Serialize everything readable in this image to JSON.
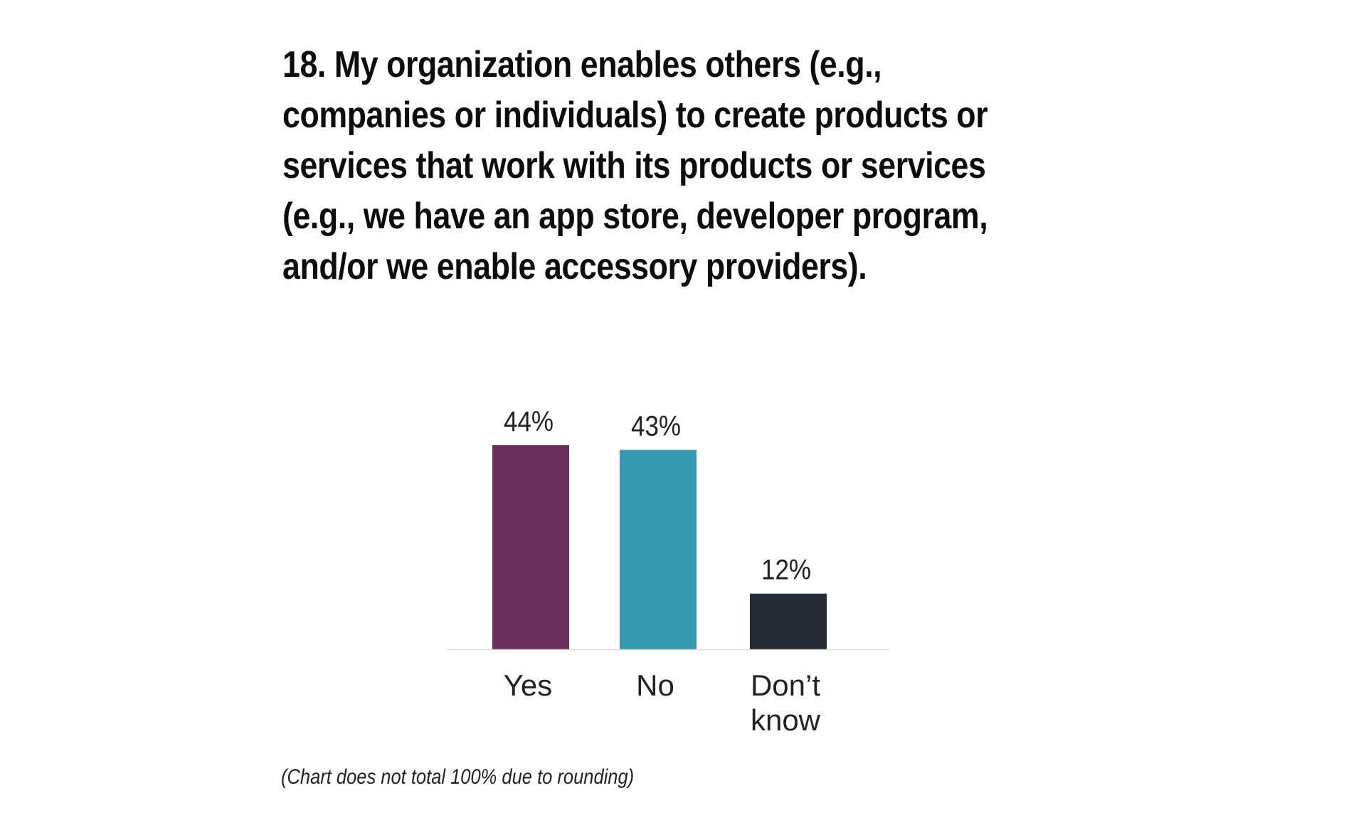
{
  "title": "18. My organization enables others (e.g., companies or individuals) to create products or services that work with its products or services (e.g., we have an app store, developer program, and/or we enable accessory providers).",
  "footnote": "(Chart does not total 100% due to rounding)",
  "chart_data": {
    "type": "bar",
    "title": "18. My organization enables others (e.g., companies or individuals) to create products or services that work with its products or services (e.g., we have an app store, developer program, and/or we enable accessory providers).",
    "categories": [
      "Yes",
      "No",
      "Don’t know"
    ],
    "category_lines": [
      [
        "Yes"
      ],
      [
        "No"
      ],
      [
        "Don’t",
        "know"
      ]
    ],
    "values": [
      44,
      43,
      12
    ],
    "value_labels": [
      "44%",
      "43%",
      "12%"
    ],
    "unit": "%",
    "colors": [
      "#6b2d5c",
      "#3699b0",
      "#252a33"
    ],
    "baseline_color": "#d9d9d9",
    "ylim": [
      0,
      44
    ],
    "grid": false,
    "legend": "none",
    "xlabel": "",
    "ylabel": ""
  }
}
